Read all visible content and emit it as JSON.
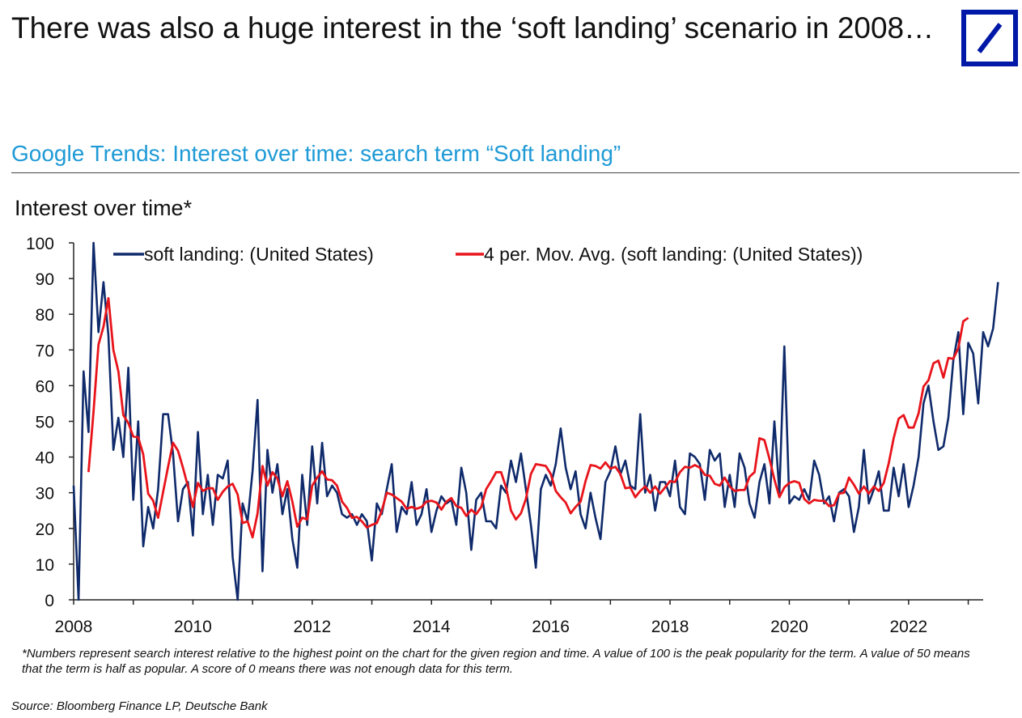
{
  "slide": {
    "title": "There was also a huge interest in the ‘soft landing’ scenario in 2008…",
    "chart_title": "Google Trends: Interest over time: search term “Soft landing”",
    "footnote": "*Numbers represent search interest relative to the highest point on the chart for the given region and time. A value of 100 is the peak popularity for the term. A value of 50 means that the term is half as popular. A score of 0 means there was not enough data for this term.",
    "source": "Source: Bloomberg Finance LP, Deutsche Bank",
    "logo_icon": "deutsche-bank-logo-icon"
  },
  "chart_data": {
    "type": "line",
    "ylabel": "Interest over time*",
    "xlabel": "",
    "ylim": [
      0,
      100
    ],
    "xlim": [
      2008.0,
      2023.25
    ],
    "y_ticks": [
      0,
      10,
      20,
      30,
      40,
      50,
      60,
      70,
      80,
      90,
      100
    ],
    "x_ticks": [
      2008,
      2010,
      2012,
      2014,
      2016,
      2018,
      2020,
      2022
    ],
    "legend_position": "top",
    "series": [
      {
        "name": "soft landing: (United States)",
        "color": "#0f2a6b",
        "start": 2008.0,
        "step": 0.0833333,
        "values": [
          32,
          0,
          64,
          47,
          100,
          75,
          89,
          74,
          42,
          51,
          40,
          65,
          28,
          50,
          15,
          26,
          20,
          31,
          52,
          52,
          41,
          22,
          31,
          33,
          18,
          47,
          24,
          35,
          21,
          35,
          34,
          39,
          12,
          0,
          27,
          22,
          36,
          56,
          8,
          42,
          30,
          38,
          24,
          31,
          17,
          9,
          35,
          21,
          43,
          27,
          44,
          29,
          32,
          30,
          24,
          23,
          24,
          21,
          24,
          22,
          11,
          27,
          24,
          31,
          38,
          19,
          26,
          24,
          33,
          21,
          24,
          31,
          19,
          25,
          29,
          27,
          28,
          21,
          37,
          30,
          14,
          28,
          30,
          22,
          22,
          20,
          32,
          30,
          39,
          33,
          41,
          31,
          21,
          9,
          31,
          35,
          32,
          38,
          48,
          37,
          31,
          36,
          24,
          20,
          30,
          23,
          17,
          33,
          36,
          43,
          35,
          39,
          32,
          31,
          52,
          30,
          35,
          25,
          33,
          33,
          29,
          39,
          26,
          24,
          41,
          40,
          38,
          28,
          42,
          39,
          41,
          26,
          35,
          26,
          41,
          37,
          27,
          23,
          33,
          38,
          27,
          50,
          30,
          71,
          27,
          29,
          28,
          31,
          28,
          39,
          35,
          27,
          29,
          22,
          30,
          31,
          29,
          19,
          26,
          42,
          27,
          31,
          36,
          25,
          25,
          37,
          29,
          38,
          26,
          32,
          40,
          55,
          60,
          50,
          42,
          43,
          51,
          67,
          75,
          52,
          72,
          69,
          55,
          75,
          71,
          76,
          89
        ]
      },
      {
        "name": "4 per. Mov. Avg. (soft landing: (United States))",
        "color": "#e8141b",
        "start": 2008.25,
        "step": 0.0833333,
        "values": [
          35.75,
          52.75,
          71.5,
          76.5,
          84.5,
          70,
          64,
          51.75,
          49.5,
          45.75,
          45.5,
          40.75,
          29.75,
          27.75,
          23,
          30.25,
          37.25,
          44,
          41.75,
          37,
          31.75,
          26,
          32.75,
          30.5,
          31.25,
          31.25,
          28,
          30.25,
          31.75,
          32.5,
          29.5,
          21.5,
          22,
          17.5,
          24.25,
          37.5,
          32,
          35.75,
          34,
          29,
          33.25,
          27.5,
          20.5,
          23,
          22.5,
          32,
          34.25,
          36,
          33.75,
          33.5,
          32,
          27.5,
          25.75,
          23,
          23.25,
          22,
          20.25,
          21,
          21.5,
          25,
          30,
          29.5,
          28.5,
          27.5,
          25.5,
          26,
          25.5,
          26,
          27.5,
          27.75,
          27.25,
          25.25,
          27.5,
          28.5,
          26.25,
          25.75,
          23.5,
          25.25,
          24,
          26,
          31,
          33.25,
          35.75,
          35.75,
          31.5,
          25,
          22.5,
          24.25,
          28.25,
          35.25,
          38,
          37.75,
          37.5,
          35.25,
          30.5,
          28.75,
          27.25,
          24.25,
          26,
          27.5,
          33.25,
          37.75,
          37.5,
          36.75,
          38.5,
          36.75,
          37.25,
          35.25,
          31.25,
          31.5,
          28.75,
          30.5,
          31.75,
          30,
          31.75,
          29.75,
          31.5,
          33.25,
          33,
          35.75,
          37.25,
          37,
          37.75,
          37,
          35,
          34.75,
          32.5,
          32,
          34.25,
          31.75,
          30.5,
          30.75,
          30.75,
          34.5,
          35.75,
          45.25,
          44.75,
          39.5,
          33.75,
          28.75,
          31.5,
          32.75,
          33.25,
          32.75,
          28.25,
          27,
          28,
          27.75,
          27.75,
          26.25,
          26.5,
          29.75,
          30,
          34.25,
          32.25,
          29.75,
          31.75,
          29.75,
          31.75,
          30.5,
          32.75,
          38.25,
          45.25,
          50.75,
          51.75,
          48.25,
          48.25,
          52.25,
          59.75,
          61.5,
          66.25,
          67,
          62.25,
          67.75,
          67.5,
          70.5,
          78,
          79
        ]
      }
    ]
  }
}
